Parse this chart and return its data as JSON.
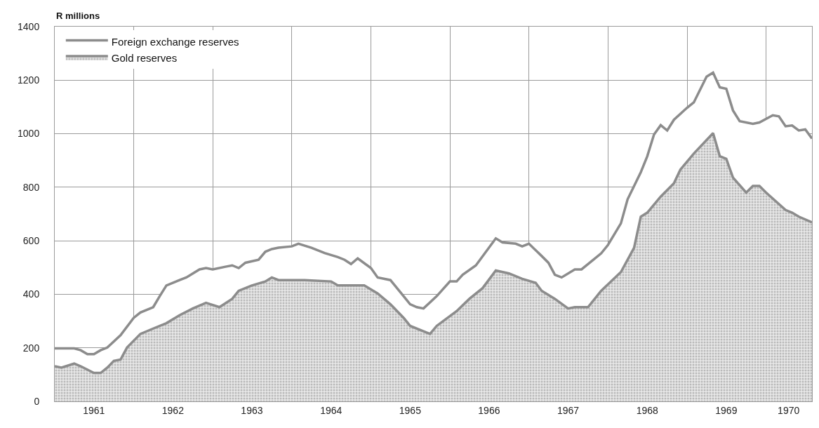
{
  "chart_data": {
    "type": "area",
    "ylabel": "R millions",
    "legend": "top left",
    "grid": true,
    "line_style": "solid",
    "xlim": [
      "1961-01",
      "1970-08"
    ],
    "xticks": [
      {
        "value": "1961-07",
        "label": "1961"
      },
      {
        "value": "1962-07",
        "label": "1962"
      },
      {
        "value": "1963-07",
        "label": "1963"
      },
      {
        "value": "1964-07",
        "label": "1964"
      },
      {
        "value": "1965-07",
        "label": "1965"
      },
      {
        "value": "1966-07",
        "label": "1966"
      },
      {
        "value": "1967-07",
        "label": "1967"
      },
      {
        "value": "1968-07",
        "label": "1968"
      },
      {
        "value": "1969-07",
        "label": "1969"
      },
      {
        "value": "1970-04-15",
        "label": "1970"
      }
    ],
    "ylim": [
      0,
      1400
    ],
    "yticks": [
      0,
      200,
      400,
      600,
      800,
      1000,
      1200,
      1400
    ],
    "series": [
      {
        "name": "Foreign exchange reserves",
        "color": "#8c8c8c",
        "x": [
          "1961-01",
          "1961-04",
          "1961-05",
          "1961-06",
          "1961-07",
          "1961-08",
          "1961-09",
          "1961-11",
          "1962-01",
          "1962-02",
          "1962-04",
          "1962-05",
          "1962-06",
          "1962-08",
          "1962-09",
          "1962-11",
          "1962-12",
          "1963-01",
          "1963-03",
          "1963-04",
          "1963-05",
          "1963-06",
          "1963-08",
          "1963-09",
          "1963-10",
          "1963-11",
          "1964-01",
          "1964-02",
          "1964-04",
          "1964-06",
          "1964-08",
          "1964-09",
          "1964-10",
          "1964-11",
          "1965-01",
          "1965-02",
          "1965-04",
          "1965-06",
          "1965-07",
          "1965-08",
          "1965-09",
          "1965-11",
          "1966-01",
          "1966-02",
          "1966-03",
          "1966-05",
          "1966-08",
          "1966-09",
          "1966-11",
          "1966-12",
          "1967-01",
          "1967-03",
          "1967-04",
          "1967-05",
          "1967-06",
          "1967-08",
          "1967-09",
          "1967-11",
          "1967-12",
          "1968-01",
          "1968-03",
          "1968-04",
          "1968-06",
          "1968-07",
          "1968-08",
          "1968-09",
          "1968-10",
          "1968-11",
          "1969-01",
          "1969-02",
          "1969-04",
          "1969-05",
          "1969-06",
          "1969-07",
          "1969-08",
          "1969-09",
          "1969-11",
          "1969-12",
          "1970-02",
          "1970-03",
          "1970-04",
          "1970-05",
          "1970-06",
          "1970-07",
          "1970-08"
        ],
        "values": [
          198,
          198,
          191,
          176,
          176,
          191,
          201,
          247,
          312,
          332,
          352,
          393,
          433,
          453,
          463,
          493,
          498,
          493,
          503,
          508,
          498,
          518,
          529,
          559,
          569,
          574,
          579,
          589,
          574,
          554,
          539,
          529,
          513,
          534,
          498,
          463,
          453,
          393,
          363,
          352,
          347,
          393,
          448,
          448,
          473,
          508,
          609,
          594,
          589,
          579,
          589,
          543,
          518,
          473,
          463,
          493,
          493,
          533,
          553,
          584,
          665,
          755,
          856,
          916,
          997,
          1032,
          1012,
          1052,
          1097,
          1117,
          1213,
          1228,
          1173,
          1168,
          1087,
          1047,
          1037,
          1042,
          1069,
          1065,
          1028,
          1031,
          1012,
          1016,
          982
        ]
      },
      {
        "name": "Gold reserves",
        "color": "#8c8c8c",
        "x": [
          "1961-01",
          "1961-02",
          "1961-04",
          "1961-05",
          "1961-07",
          "1961-08",
          "1961-09",
          "1961-10",
          "1961-11",
          "1961-12",
          "1962-02",
          "1962-04",
          "1962-06",
          "1962-08",
          "1962-10",
          "1962-12",
          "1963-02",
          "1963-04",
          "1963-05",
          "1963-07",
          "1963-09",
          "1963-10",
          "1963-11",
          "1964-03",
          "1964-07",
          "1964-08",
          "1964-12",
          "1965-02",
          "1965-04",
          "1965-06",
          "1965-07",
          "1965-10",
          "1965-11",
          "1966-02",
          "1966-04",
          "1966-06",
          "1966-08",
          "1966-10",
          "1966-12",
          "1967-02",
          "1967-03",
          "1967-05",
          "1967-07",
          "1967-08",
          "1967-10",
          "1967-12",
          "1968-03",
          "1968-05",
          "1968-06",
          "1968-07",
          "1968-09",
          "1968-11",
          "1968-12",
          "1969-02",
          "1969-05",
          "1969-06",
          "1969-07",
          "1969-08",
          "1969-10",
          "1969-11",
          "1969-12",
          "1970-01",
          "1970-04",
          "1970-05",
          "1970-06",
          "1970-08"
        ],
        "values": [
          131,
          126,
          141,
          131,
          106,
          106,
          126,
          151,
          156,
          201,
          252,
          272,
          292,
          322,
          347,
          368,
          352,
          383,
          413,
          433,
          448,
          463,
          453,
          453,
          448,
          433,
          433,
          403,
          363,
          312,
          282,
          252,
          282,
          337,
          383,
          423,
          489,
          478,
          458,
          443,
          413,
          383,
          347,
          352,
          352,
          413,
          483,
          574,
          690,
          705,
          765,
          815,
          866,
          926,
          1002,
          916,
          906,
          836,
          780,
          805,
          805,
          780,
          715,
          705,
          690,
          669
        ]
      }
    ]
  }
}
